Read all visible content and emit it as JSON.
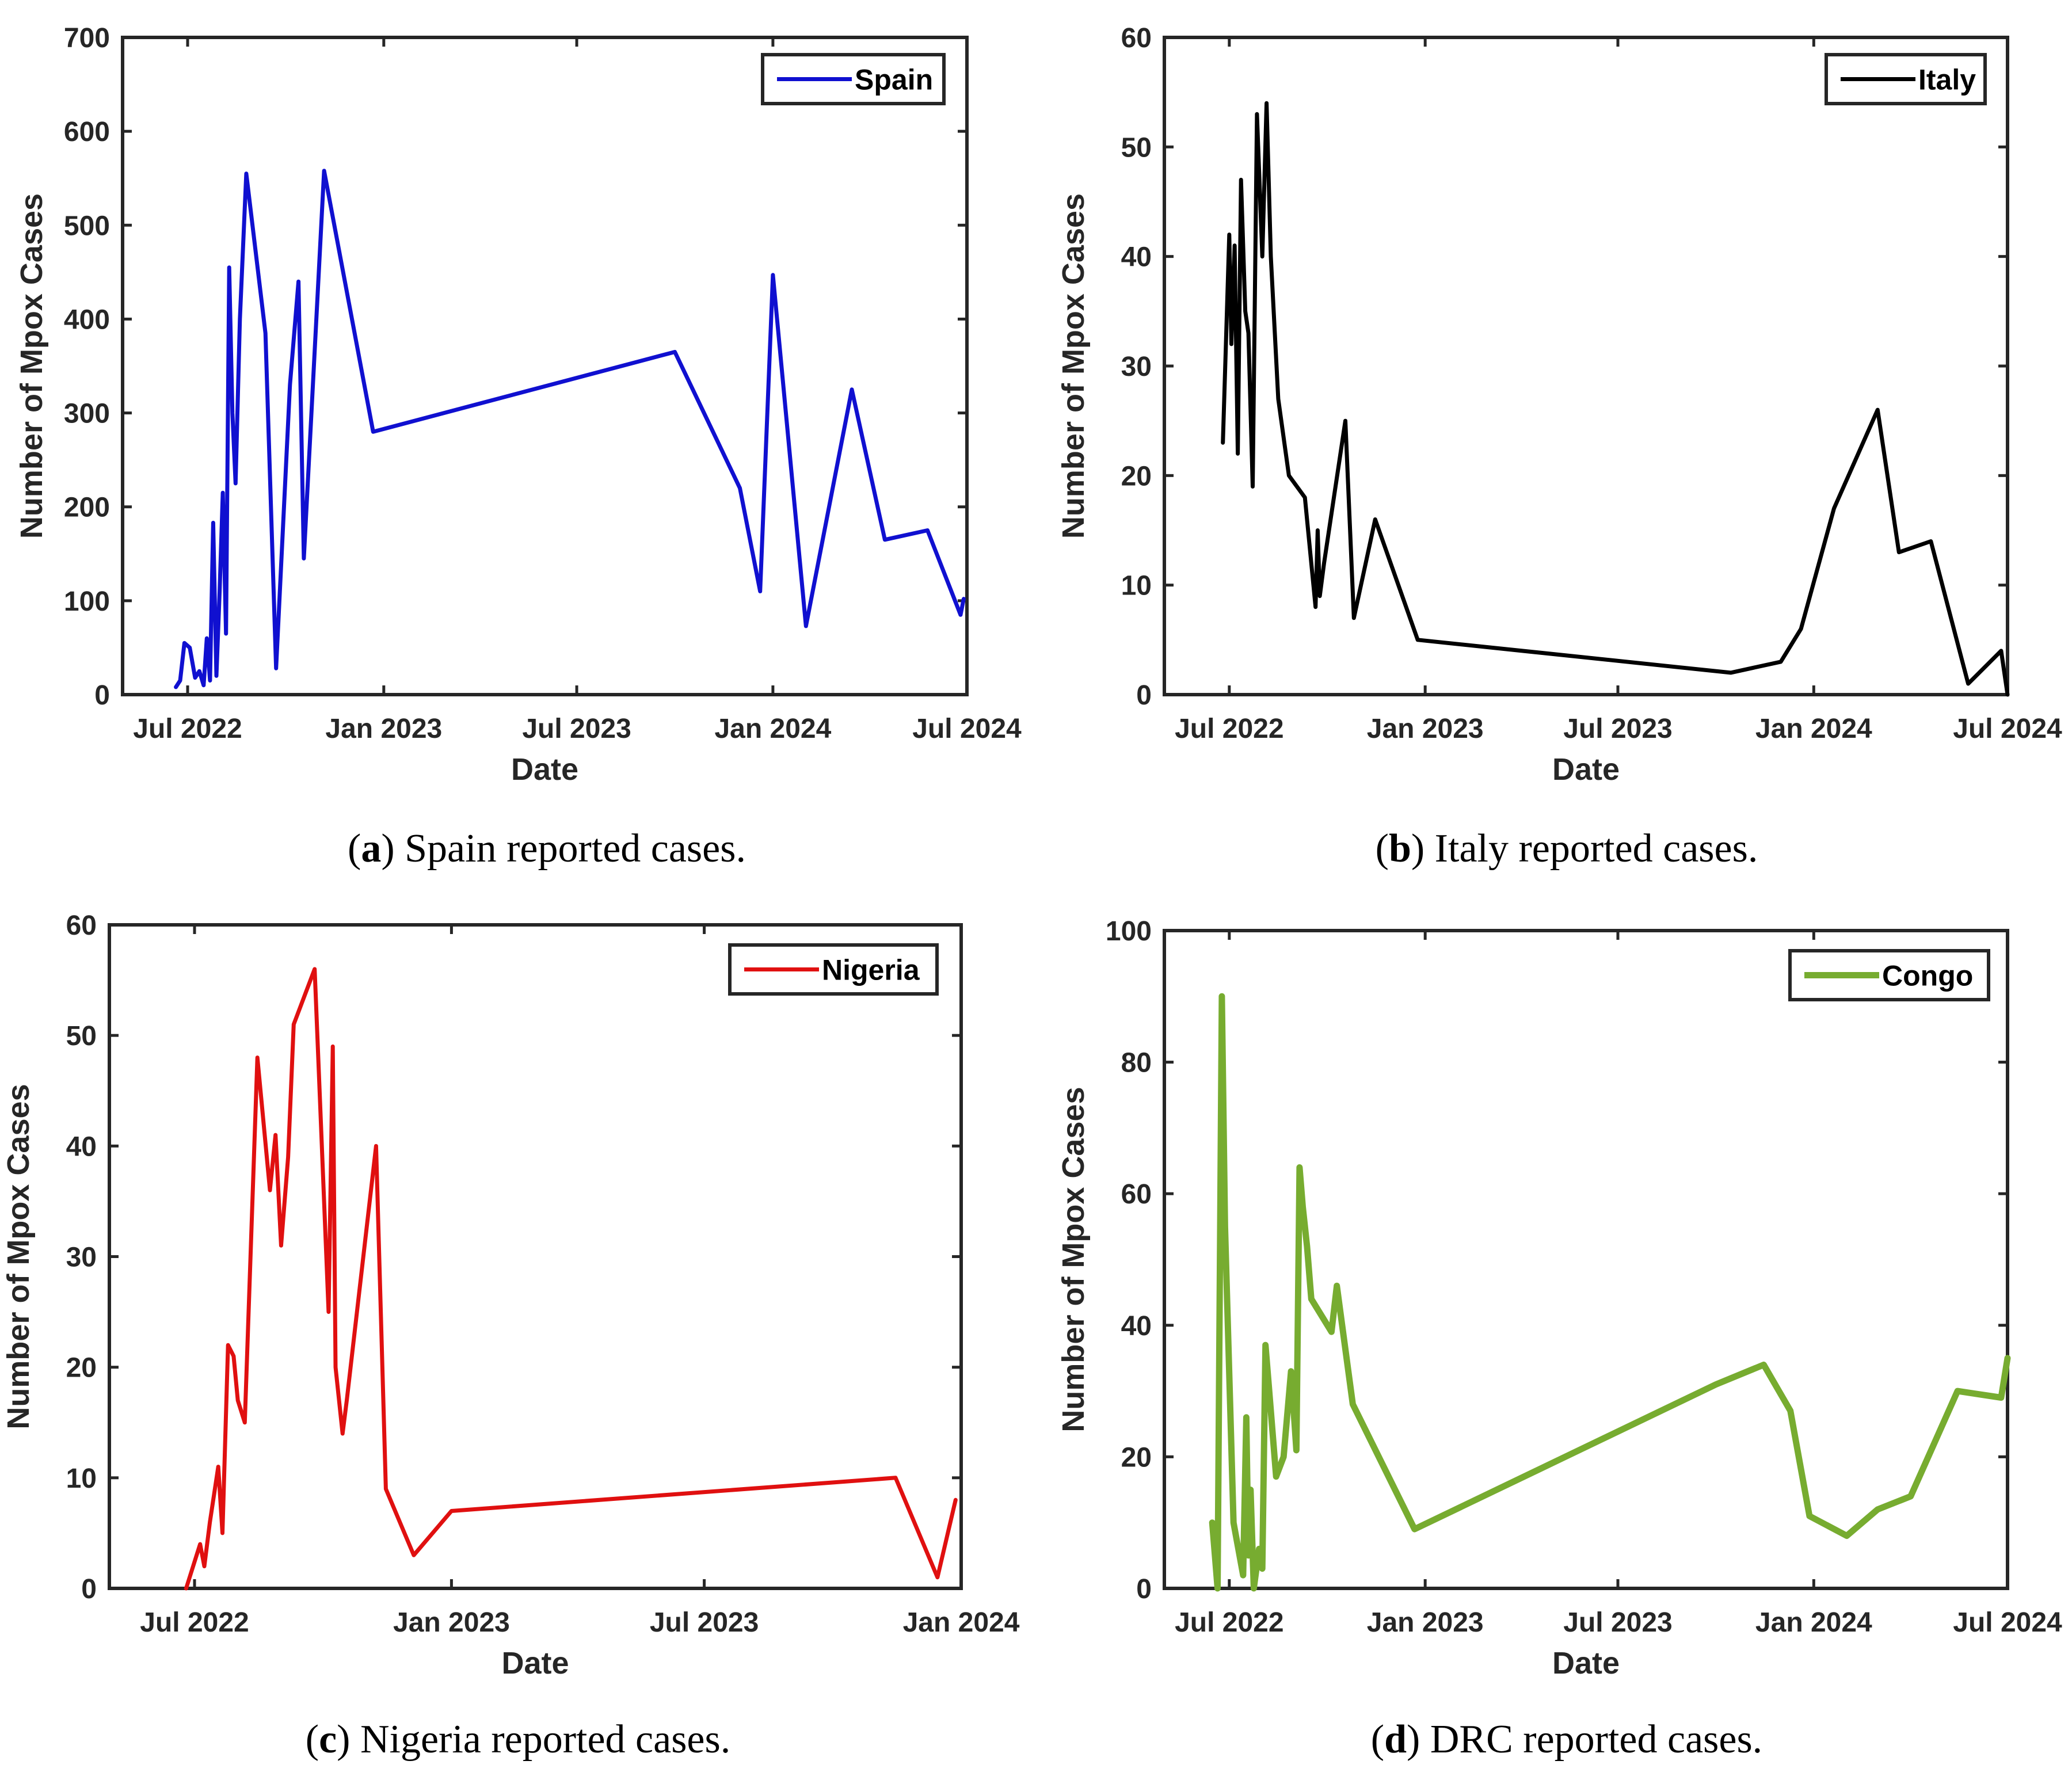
{
  "chart_data": [
    {
      "type": "line",
      "caption_letter": "a",
      "caption_text": "Spain reported cases.",
      "xlabel": "Date",
      "ylabel": "Number of Mpox Cases",
      "xlim": [
        "2022-05-01",
        "2024-07-01"
      ],
      "ylim": [
        0,
        700
      ],
      "xticks": [
        {
          "date": "2022-07-01",
          "label": "Jul 2022"
        },
        {
          "date": "2023-01-01",
          "label": "Jan 2023"
        },
        {
          "date": "2023-07-01",
          "label": "Jul 2023"
        },
        {
          "date": "2024-01-01",
          "label": "Jan 2024"
        },
        {
          "date": "2024-07-01",
          "label": "Jul 2024"
        }
      ],
      "yticks": [
        0,
        100,
        200,
        300,
        400,
        500,
        600,
        700
      ],
      "legend_position": "top-right",
      "grid": false,
      "series": [
        {
          "name": "Spain",
          "color": "#1010d0",
          "x": [
            "2022-06-20",
            "2022-06-24",
            "2022-06-28",
            "2022-07-03",
            "2022-07-08",
            "2022-07-12",
            "2022-07-16",
            "2022-07-19",
            "2022-07-22",
            "2022-07-25",
            "2022-07-28",
            "2022-07-31",
            "2022-08-03",
            "2022-08-06",
            "2022-08-09",
            "2022-08-12",
            "2022-08-15",
            "2022-08-19",
            "2022-08-25",
            "2022-09-12",
            "2022-09-22",
            "2022-10-05",
            "2022-10-13",
            "2022-10-18",
            "2022-11-06",
            "2022-12-22",
            "2023-10-01",
            "2023-12-01",
            "2023-12-20",
            "2024-01-01",
            "2024-02-01",
            "2024-03-15",
            "2024-04-15",
            "2024-05-25",
            "2024-06-25",
            "2024-06-28"
          ],
          "y": [
            8,
            15,
            55,
            50,
            18,
            25,
            10,
            60,
            15,
            183,
            20,
            110,
            215,
            65,
            455,
            300,
            225,
            400,
            555,
            385,
            28,
            330,
            440,
            145,
            558,
            280,
            365,
            220,
            110,
            447,
            73,
            325,
            165,
            175,
            85,
            102
          ]
        }
      ]
    },
    {
      "type": "line",
      "caption_letter": "b",
      "caption_text": "Italy reported cases.",
      "xlabel": "Date",
      "ylabel": "Number of Mpox Cases",
      "xlim": [
        "2022-05-01",
        "2024-07-01"
      ],
      "ylim": [
        0,
        60
      ],
      "xticks": [
        {
          "date": "2022-07-01",
          "label": "Jul 2022"
        },
        {
          "date": "2023-01-01",
          "label": "Jan 2023"
        },
        {
          "date": "2023-07-01",
          "label": "Jul 2023"
        },
        {
          "date": "2024-01-01",
          "label": "Jan 2024"
        },
        {
          "date": "2024-07-01",
          "label": "Jul 2024"
        }
      ],
      "yticks": [
        0,
        10,
        20,
        30,
        40,
        50,
        60
      ],
      "legend_position": "top-right",
      "grid": false,
      "series": [
        {
          "name": "Italy",
          "color": "#000000",
          "x": [
            "2022-06-25",
            "2022-07-01",
            "2022-07-03",
            "2022-07-06",
            "2022-07-09",
            "2022-07-12",
            "2022-07-16",
            "2022-07-19",
            "2022-07-23",
            "2022-07-27",
            "2022-08-01",
            "2022-08-05",
            "2022-08-09",
            "2022-08-16",
            "2022-08-26",
            "2022-09-10",
            "2022-09-20",
            "2022-09-22",
            "2022-09-24",
            "2022-09-28",
            "2022-10-18",
            "2022-10-26",
            "2022-11-15",
            "2022-12-25",
            "2023-10-15",
            "2023-12-01",
            "2023-12-20",
            "2024-01-20",
            "2024-03-01",
            "2024-03-21",
            "2024-04-20",
            "2024-05-25",
            "2024-06-25",
            "2024-07-01"
          ],
          "y": [
            23,
            42,
            32,
            41,
            22,
            47,
            35,
            33,
            19,
            53,
            40,
            54,
            40,
            27,
            20,
            18,
            8,
            15,
            9,
            12,
            25,
            7,
            16,
            5,
            2,
            3,
            6,
            17,
            26,
            13,
            14,
            1,
            4,
            0
          ]
        }
      ]
    },
    {
      "type": "line",
      "caption_letter": "c",
      "caption_text": "Nigeria reported cases.",
      "xlabel": "Date",
      "ylabel": "Number of Mpox Cases",
      "xlim": [
        "2022-05-01",
        "2024-01-01"
      ],
      "ylim": [
        0,
        60
      ],
      "xticks": [
        {
          "date": "2022-07-01",
          "label": "Jul 2022"
        },
        {
          "date": "2023-01-01",
          "label": "Jan 2023"
        },
        {
          "date": "2023-07-01",
          "label": "Jul 2023"
        },
        {
          "date": "2024-01-01",
          "label": "Jan 2024"
        }
      ],
      "yticks": [
        0,
        10,
        20,
        30,
        40,
        50,
        60
      ],
      "legend_position": "top-right",
      "grid": false,
      "series": [
        {
          "name": "Nigeria",
          "color": "#e01010",
          "x": [
            "2022-06-25",
            "2022-07-05",
            "2022-07-08",
            "2022-07-12",
            "2022-07-18",
            "2022-07-21",
            "2022-07-25",
            "2022-07-29",
            "2022-08-01",
            "2022-08-06",
            "2022-08-15",
            "2022-08-24",
            "2022-08-28",
            "2022-09-01",
            "2022-09-06",
            "2022-09-10",
            "2022-09-25",
            "2022-10-05",
            "2022-10-08",
            "2022-10-10",
            "2022-10-15",
            "2022-10-18",
            "2022-11-08",
            "2022-11-15",
            "2022-12-05",
            "2023-01-01",
            "2023-11-15",
            "2023-12-15",
            "2023-12-28"
          ],
          "y": [
            0,
            4,
            2,
            6,
            11,
            5,
            22,
            21,
            17,
            15,
            48,
            36,
            41,
            31,
            39,
            51,
            56,
            25,
            49,
            20,
            14,
            17,
            40,
            9,
            3,
            7,
            10,
            1,
            8
          ]
        }
      ]
    },
    {
      "type": "line",
      "caption_letter": "d",
      "caption_text": "DRC reported cases.",
      "xlabel": "Date",
      "ylabel": "Number of Mpox Cases",
      "xlim": [
        "2022-05-01",
        "2024-07-01"
      ],
      "ylim": [
        0,
        100
      ],
      "xticks": [
        {
          "date": "2022-07-01",
          "label": "Jul 2022"
        },
        {
          "date": "2023-01-01",
          "label": "Jan 2023"
        },
        {
          "date": "2023-07-01",
          "label": "Jul 2023"
        },
        {
          "date": "2024-01-01",
          "label": "Jan 2024"
        },
        {
          "date": "2024-07-01",
          "label": "Jul 2024"
        }
      ],
      "yticks": [
        0,
        20,
        40,
        60,
        80,
        100
      ],
      "legend_position": "top-right",
      "grid": false,
      "series": [
        {
          "name": "Congo",
          "color": "#77ac30",
          "x": [
            "2022-06-15",
            "2022-06-20",
            "2022-06-24",
            "2022-06-27",
            "2022-07-05",
            "2022-07-14",
            "2022-07-17",
            "2022-07-19",
            "2022-07-21",
            "2022-07-24",
            "2022-07-29",
            "2022-08-01",
            "2022-08-04",
            "2022-08-09",
            "2022-08-14",
            "2022-08-21",
            "2022-08-28",
            "2022-09-02",
            "2022-09-05",
            "2022-09-08",
            "2022-09-12",
            "2022-09-16",
            "2022-10-05",
            "2022-10-10",
            "2022-10-15",
            "2022-10-25",
            "2022-12-22",
            "2023-10-01",
            "2023-11-15",
            "2023-12-10",
            "2023-12-28",
            "2024-02-01",
            "2024-03-01",
            "2024-04-01",
            "2024-05-15",
            "2024-06-25",
            "2024-07-01"
          ],
          "y": [
            10,
            0,
            90,
            55,
            10,
            2,
            26,
            5,
            15,
            0,
            6,
            3,
            37,
            27,
            17,
            20,
            33,
            21,
            64,
            58,
            52,
            44,
            39,
            46,
            40,
            28,
            9,
            31,
            34,
            27,
            11,
            8,
            12,
            14,
            30,
            29,
            35
          ]
        }
      ]
    }
  ]
}
